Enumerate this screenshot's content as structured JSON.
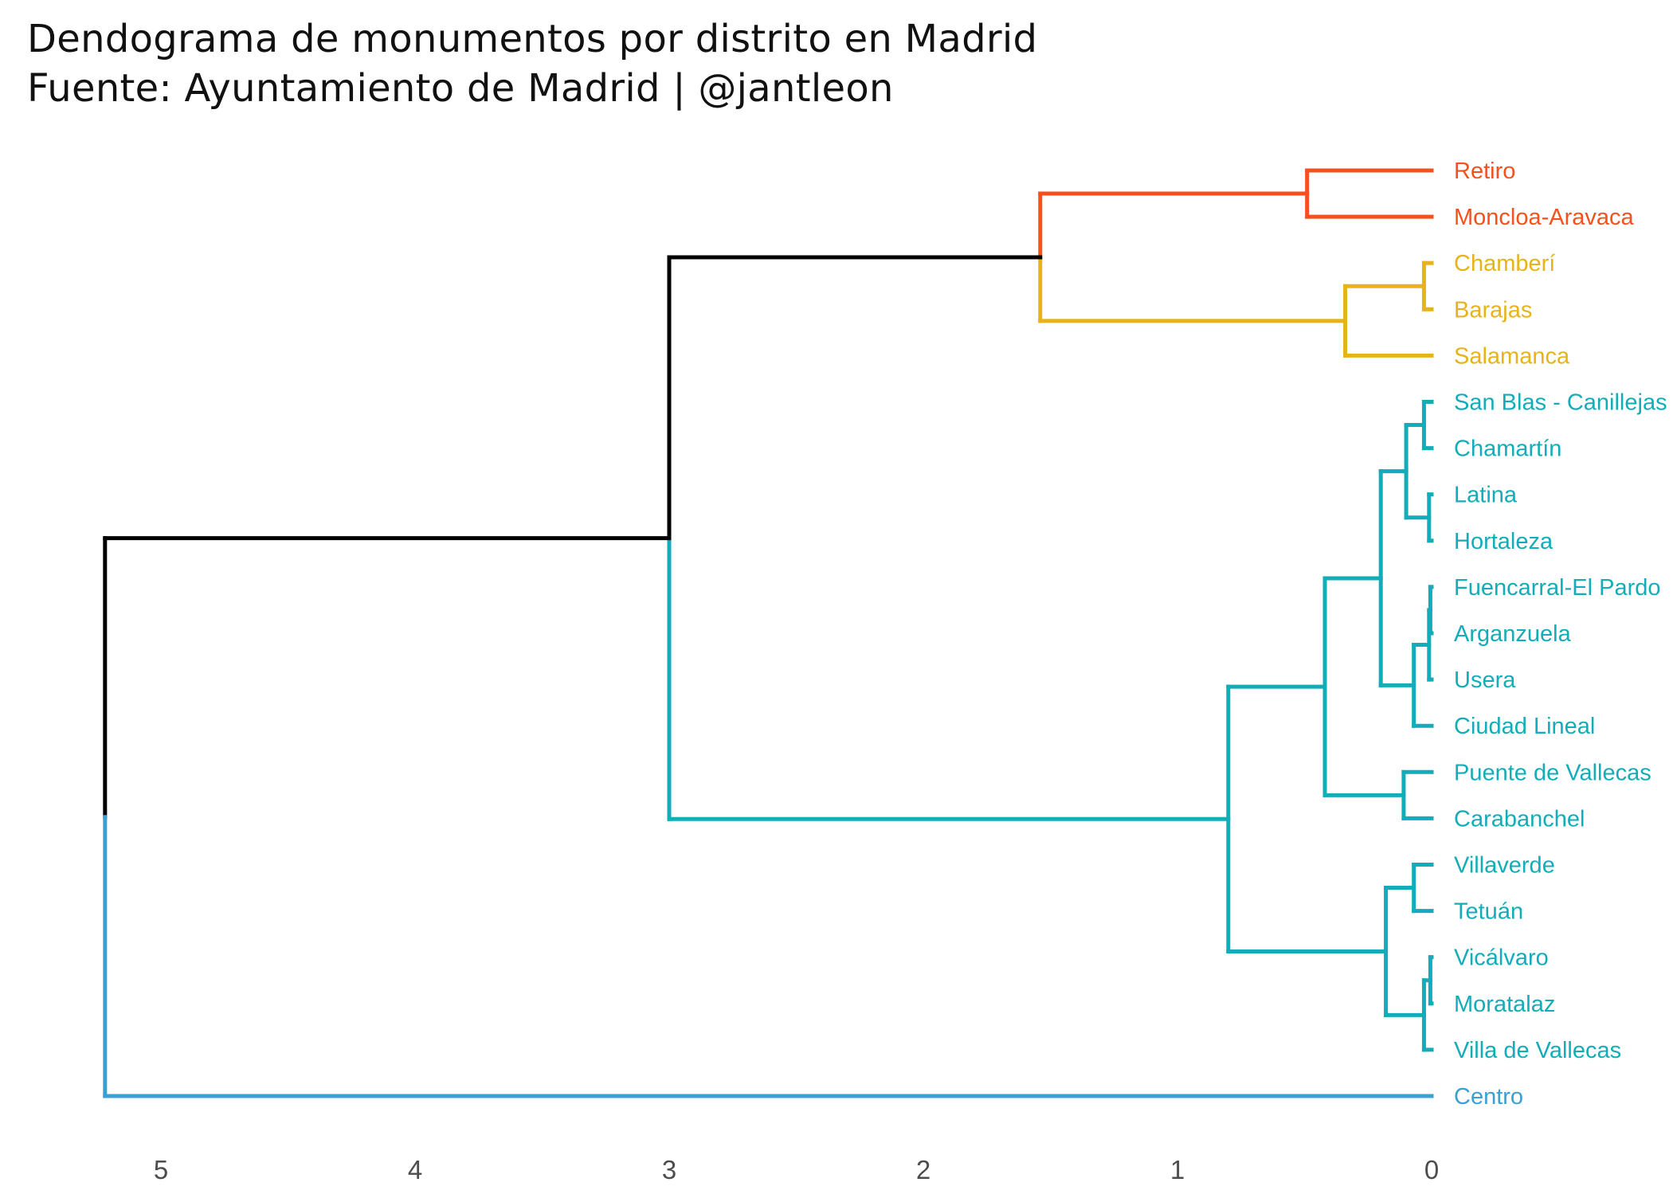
{
  "title": "Dendograma de monumentos por distrito en Madrid",
  "subtitle": "Fuente: Ayuntamiento de Madrid | @jantleon",
  "colors": {
    "root": "#000000",
    "cluster_red": "#F4511E",
    "cluster_yellow": "#E6B41A",
    "cluster_teal": "#12ADB8",
    "cluster_blue": "#3B9FD4"
  },
  "axis": {
    "ticks": [
      5,
      4,
      3,
      2,
      1,
      0
    ]
  },
  "leaves": [
    {
      "label": "Retiro",
      "color": "#F4511E"
    },
    {
      "label": "Moncloa-Aravaca",
      "color": "#F4511E"
    },
    {
      "label": "Chamberí",
      "color": "#E6B41A"
    },
    {
      "label": "Barajas",
      "color": "#E6B41A"
    },
    {
      "label": "Salamanca",
      "color": "#E6B41A"
    },
    {
      "label": "San Blas - Canillejas",
      "color": "#12ADB8"
    },
    {
      "label": "Chamartín",
      "color": "#12ADB8"
    },
    {
      "label": "Latina",
      "color": "#12ADB8"
    },
    {
      "label": "Hortaleza",
      "color": "#12ADB8"
    },
    {
      "label": "Fuencarral-El Pardo",
      "color": "#12ADB8"
    },
    {
      "label": "Arganzuela",
      "color": "#12ADB8"
    },
    {
      "label": "Usera",
      "color": "#12ADB8"
    },
    {
      "label": "Ciudad Lineal",
      "color": "#12ADB8"
    },
    {
      "label": "Puente de Vallecas",
      "color": "#12ADB8"
    },
    {
      "label": "Carabanchel",
      "color": "#12ADB8"
    },
    {
      "label": "Villaverde",
      "color": "#12ADB8"
    },
    {
      "label": "Tetuán",
      "color": "#12ADB8"
    },
    {
      "label": "Vicálvaro",
      "color": "#12ADB8"
    },
    {
      "label": "Moratalaz",
      "color": "#12ADB8"
    },
    {
      "label": "Villa de Vallecas",
      "color": "#12ADB8"
    },
    {
      "label": "Centro",
      "color": "#3B9FD4"
    }
  ],
  "merges": [
    {
      "a": "L0",
      "b": "L1",
      "height": 0.49,
      "color": "#F4511E"
    },
    {
      "a": "L2",
      "b": "L3",
      "height": 0.03,
      "color": "#E6B41A"
    },
    {
      "a": "M1",
      "b": "L4",
      "height": 0.34,
      "color": "#E6B41A"
    },
    {
      "a": "M0",
      "b": "M2",
      "height": 1.54,
      "color": "#F4511E",
      "color_b": "#E6B41A"
    },
    {
      "a": "L5",
      "b": "L6",
      "height": 0.03,
      "color": "#12ADB8"
    },
    {
      "a": "L7",
      "b": "L8",
      "height": 0.01,
      "color": "#12ADB8"
    },
    {
      "a": "M4",
      "b": "M5",
      "height": 0.1,
      "color": "#12ADB8"
    },
    {
      "a": "L9",
      "b": "L10",
      "height": 0.005,
      "color": "#12ADB8"
    },
    {
      "a": "M7",
      "b": "L11",
      "height": 0.01,
      "color": "#12ADB8"
    },
    {
      "a": "M8",
      "b": "L12",
      "height": 0.07,
      "color": "#12ADB8"
    },
    {
      "a": "M6",
      "b": "M9",
      "height": 0.2,
      "color": "#12ADB8"
    },
    {
      "a": "L13",
      "b": "L14",
      "height": 0.11,
      "color": "#12ADB8"
    },
    {
      "a": "M10",
      "b": "M11",
      "height": 0.42,
      "color": "#12ADB8"
    },
    {
      "a": "L15",
      "b": "L16",
      "height": 0.07,
      "color": "#12ADB8"
    },
    {
      "a": "L17",
      "b": "L18",
      "height": 0.005,
      "color": "#12ADB8"
    },
    {
      "a": "M14",
      "b": "L19",
      "height": 0.03,
      "color": "#12ADB8"
    },
    {
      "a": "M13",
      "b": "M15",
      "height": 0.18,
      "color": "#12ADB8"
    },
    {
      "a": "M12",
      "b": "M16",
      "height": 0.8,
      "color": "#12ADB8"
    },
    {
      "a": "M3",
      "b": "M17",
      "height": 3.0,
      "color": "#000000",
      "color_b": "#12ADB8"
    },
    {
      "a": "M18",
      "b": "L20",
      "height": 5.22,
      "color": "#000000",
      "color_b": "#3B9FD4"
    }
  ]
}
